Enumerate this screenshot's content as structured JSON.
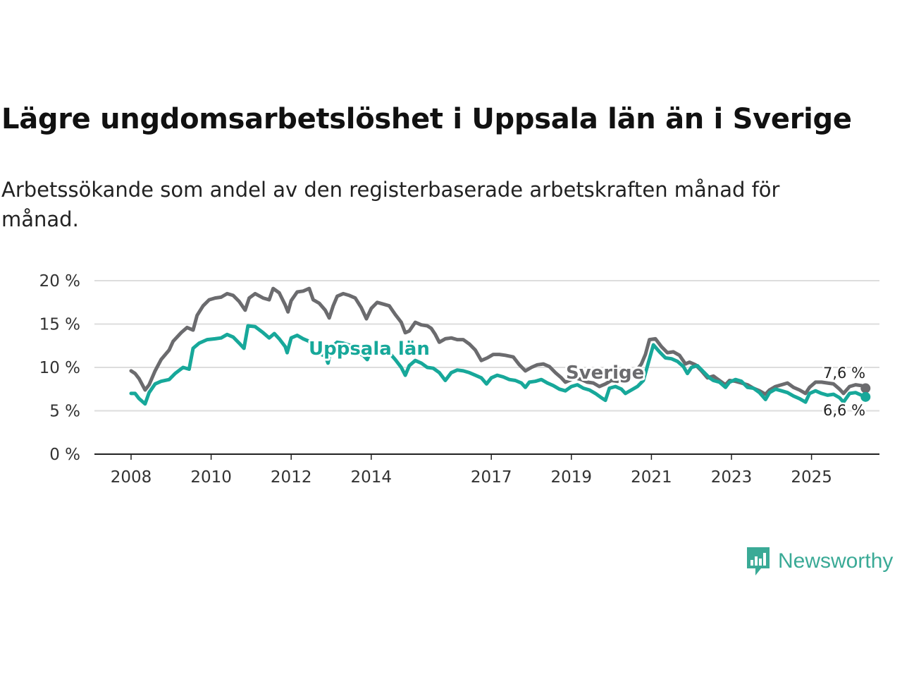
{
  "title": "Lägre ungdomsarbetslöshet i Uppsala län än i Sverige",
  "subtitle": "Arbetssökande som andel av den registerbaserade arbetskraften månad för månad.",
  "brand": {
    "name": "Newsworthy",
    "color": "#3aaa96",
    "icon": "newsworthy-chart-icon"
  },
  "colors": {
    "sverige": "#6b6b6e",
    "uppsala": "#17a89a",
    "grid": "#dddddd",
    "axis": "#222222"
  },
  "chart_data": {
    "type": "line",
    "title": "Lägre ungdomsarbetslöshet i Uppsala län än i Sverige",
    "xlabel": "",
    "ylabel": "",
    "xlim": [
      2007.9,
      2026.8
    ],
    "ylim": [
      0,
      20
    ],
    "y_ticks": [
      0,
      5,
      10,
      15,
      20
    ],
    "y_tick_labels": [
      "0 %",
      "5 %",
      "10 %",
      "15 %",
      "20 %"
    ],
    "x_ticks": [
      2008,
      2010,
      2012,
      2014,
      2017,
      2019,
      2021,
      2023,
      2025
    ],
    "x_tick_labels": [
      "2008",
      "2010",
      "2012",
      "2014",
      "2017",
      "2019",
      "2021",
      "2023",
      "2025"
    ],
    "grid": true,
    "series": [
      {
        "name": "Sverige",
        "label": "Sverige",
        "end_label": "7,6 %",
        "points": [
          [
            2008.0,
            9.6
          ],
          [
            2008.1,
            9.3
          ],
          [
            2008.2,
            8.7
          ],
          [
            2008.35,
            7.4
          ],
          [
            2008.45,
            8.0
          ],
          [
            2008.6,
            9.6
          ],
          [
            2008.75,
            10.9
          ],
          [
            2008.95,
            12.0
          ],
          [
            2009.05,
            13.0
          ],
          [
            2009.25,
            14.0
          ],
          [
            2009.4,
            14.6
          ],
          [
            2009.55,
            14.3
          ],
          [
            2009.65,
            16.0
          ],
          [
            2009.8,
            17.1
          ],
          [
            2009.95,
            17.8
          ],
          [
            2010.1,
            18.0
          ],
          [
            2010.25,
            18.1
          ],
          [
            2010.4,
            18.5
          ],
          [
            2010.55,
            18.3
          ],
          [
            2010.7,
            17.6
          ],
          [
            2010.85,
            16.6
          ],
          [
            2010.95,
            18.0
          ],
          [
            2011.1,
            18.5
          ],
          [
            2011.3,
            18.0
          ],
          [
            2011.45,
            17.8
          ],
          [
            2011.55,
            19.1
          ],
          [
            2011.7,
            18.6
          ],
          [
            2011.85,
            17.2
          ],
          [
            2011.92,
            16.4
          ],
          [
            2012.0,
            17.7
          ],
          [
            2012.15,
            18.7
          ],
          [
            2012.3,
            18.8
          ],
          [
            2012.45,
            19.1
          ],
          [
            2012.55,
            17.8
          ],
          [
            2012.7,
            17.4
          ],
          [
            2012.85,
            16.6
          ],
          [
            2012.95,
            15.7
          ],
          [
            2013.05,
            17.1
          ],
          [
            2013.15,
            18.2
          ],
          [
            2013.3,
            18.5
          ],
          [
            2013.45,
            18.3
          ],
          [
            2013.6,
            18.0
          ],
          [
            2013.75,
            16.9
          ],
          [
            2013.88,
            15.6
          ],
          [
            2014.0,
            16.8
          ],
          [
            2014.15,
            17.5
          ],
          [
            2014.3,
            17.3
          ],
          [
            2014.45,
            17.1
          ],
          [
            2014.6,
            16.1
          ],
          [
            2014.75,
            15.2
          ],
          [
            2014.85,
            14.0
          ],
          [
            2014.95,
            14.2
          ],
          [
            2015.1,
            15.2
          ],
          [
            2015.25,
            14.9
          ],
          [
            2015.4,
            14.8
          ],
          [
            2015.5,
            14.5
          ],
          [
            2015.6,
            13.8
          ],
          [
            2015.7,
            12.9
          ],
          [
            2015.85,
            13.3
          ],
          [
            2016.0,
            13.4
          ],
          [
            2016.15,
            13.2
          ],
          [
            2016.3,
            13.2
          ],
          [
            2016.45,
            12.7
          ],
          [
            2016.6,
            12.0
          ],
          [
            2016.75,
            10.8
          ],
          [
            2016.9,
            11.1
          ],
          [
            2017.05,
            11.5
          ],
          [
            2017.2,
            11.5
          ],
          [
            2017.35,
            11.4
          ],
          [
            2017.55,
            11.2
          ],
          [
            2017.7,
            10.3
          ],
          [
            2017.85,
            9.6
          ],
          [
            2018.0,
            10.0
          ],
          [
            2018.15,
            10.3
          ],
          [
            2018.3,
            10.4
          ],
          [
            2018.45,
            10.1
          ],
          [
            2018.6,
            9.4
          ],
          [
            2018.75,
            8.8
          ],
          [
            2018.85,
            8.3
          ],
          [
            2019.0,
            8.6
          ],
          [
            2019.1,
            8.8
          ],
          [
            2019.25,
            8.6
          ],
          [
            2019.4,
            8.3
          ],
          [
            2019.55,
            8.2
          ],
          [
            2019.7,
            7.8
          ],
          [
            2019.85,
            8.1
          ],
          [
            2020.0,
            8.5
          ],
          [
            2020.15,
            8.4
          ],
          [
            2020.3,
            8.6
          ],
          [
            2020.45,
            8.7
          ],
          [
            2020.6,
            9.5
          ],
          [
            2020.75,
            10.4
          ],
          [
            2020.85,
            11.5
          ],
          [
            2020.95,
            13.2
          ],
          [
            2021.1,
            13.3
          ],
          [
            2021.25,
            12.4
          ],
          [
            2021.4,
            11.7
          ],
          [
            2021.55,
            11.8
          ],
          [
            2021.7,
            11.4
          ],
          [
            2021.85,
            10.4
          ],
          [
            2021.95,
            10.6
          ],
          [
            2022.1,
            10.3
          ],
          [
            2022.25,
            9.6
          ],
          [
            2022.4,
            8.8
          ],
          [
            2022.55,
            9.0
          ],
          [
            2022.7,
            8.5
          ],
          [
            2022.85,
            8.0
          ],
          [
            2022.95,
            8.5
          ],
          [
            2023.1,
            8.4
          ],
          [
            2023.25,
            8.2
          ],
          [
            2023.4,
            8.0
          ],
          [
            2023.55,
            7.6
          ],
          [
            2023.7,
            7.3
          ],
          [
            2023.85,
            6.9
          ],
          [
            2023.95,
            7.4
          ],
          [
            2024.1,
            7.8
          ],
          [
            2024.25,
            8.0
          ],
          [
            2024.4,
            8.2
          ],
          [
            2024.55,
            7.7
          ],
          [
            2024.7,
            7.4
          ],
          [
            2024.85,
            7.0
          ],
          [
            2024.95,
            7.7
          ],
          [
            2025.1,
            8.3
          ],
          [
            2025.25,
            8.3
          ],
          [
            2025.4,
            8.2
          ],
          [
            2025.55,
            8.1
          ],
          [
            2025.7,
            7.5
          ],
          [
            2025.8,
            7.0
          ],
          [
            2025.95,
            7.8
          ],
          [
            2026.1,
            8.0
          ],
          [
            2026.25,
            7.9
          ],
          [
            2026.35,
            7.6
          ]
        ]
      },
      {
        "name": "Uppsala län",
        "label": "Uppsala län",
        "end_label": "6,6 %",
        "points": [
          [
            2008.0,
            7.0
          ],
          [
            2008.1,
            7.0
          ],
          [
            2008.2,
            6.4
          ],
          [
            2008.35,
            5.8
          ],
          [
            2008.45,
            7.1
          ],
          [
            2008.6,
            8.1
          ],
          [
            2008.75,
            8.4
          ],
          [
            2008.95,
            8.6
          ],
          [
            2009.1,
            9.3
          ],
          [
            2009.3,
            10.0
          ],
          [
            2009.45,
            9.8
          ],
          [
            2009.55,
            12.2
          ],
          [
            2009.7,
            12.8
          ],
          [
            2009.9,
            13.2
          ],
          [
            2010.1,
            13.3
          ],
          [
            2010.25,
            13.4
          ],
          [
            2010.4,
            13.8
          ],
          [
            2010.55,
            13.5
          ],
          [
            2010.7,
            12.8
          ],
          [
            2010.82,
            12.2
          ],
          [
            2010.92,
            14.8
          ],
          [
            2011.1,
            14.7
          ],
          [
            2011.3,
            14.0
          ],
          [
            2011.45,
            13.4
          ],
          [
            2011.58,
            13.9
          ],
          [
            2011.7,
            13.3
          ],
          [
            2011.85,
            12.4
          ],
          [
            2011.9,
            11.7
          ],
          [
            2012.0,
            13.4
          ],
          [
            2012.15,
            13.7
          ],
          [
            2012.3,
            13.3
          ],
          [
            2012.45,
            13.0
          ],
          [
            2012.55,
            11.9
          ],
          [
            2012.7,
            11.6
          ],
          [
            2012.85,
            11.3
          ],
          [
            2012.92,
            10.5
          ],
          [
            2013.0,
            12.3
          ],
          [
            2013.15,
            12.9
          ],
          [
            2013.3,
            12.8
          ],
          [
            2013.5,
            12.5
          ],
          [
            2013.65,
            11.7
          ],
          [
            2013.8,
            11.4
          ],
          [
            2013.9,
            10.9
          ],
          [
            2014.0,
            12.0
          ],
          [
            2014.15,
            12.5
          ],
          [
            2014.3,
            12.2
          ],
          [
            2014.45,
            11.7
          ],
          [
            2014.6,
            10.9
          ],
          [
            2014.75,
            10.0
          ],
          [
            2014.85,
            9.1
          ],
          [
            2014.95,
            10.2
          ],
          [
            2015.1,
            10.8
          ],
          [
            2015.25,
            10.5
          ],
          [
            2015.4,
            10.0
          ],
          [
            2015.55,
            9.9
          ],
          [
            2015.7,
            9.4
          ],
          [
            2015.85,
            8.5
          ],
          [
            2016.0,
            9.4
          ],
          [
            2016.15,
            9.7
          ],
          [
            2016.3,
            9.6
          ],
          [
            2016.45,
            9.4
          ],
          [
            2016.6,
            9.1
          ],
          [
            2016.75,
            8.8
          ],
          [
            2016.88,
            8.1
          ],
          [
            2017.0,
            8.8
          ],
          [
            2017.15,
            9.1
          ],
          [
            2017.3,
            8.9
          ],
          [
            2017.45,
            8.6
          ],
          [
            2017.6,
            8.5
          ],
          [
            2017.75,
            8.2
          ],
          [
            2017.85,
            7.7
          ],
          [
            2017.95,
            8.3
          ],
          [
            2018.1,
            8.4
          ],
          [
            2018.25,
            8.6
          ],
          [
            2018.4,
            8.2
          ],
          [
            2018.55,
            7.9
          ],
          [
            2018.7,
            7.5
          ],
          [
            2018.85,
            7.3
          ],
          [
            2019.0,
            7.8
          ],
          [
            2019.15,
            8.0
          ],
          [
            2019.3,
            7.6
          ],
          [
            2019.45,
            7.4
          ],
          [
            2019.6,
            7.0
          ],
          [
            2019.75,
            6.5
          ],
          [
            2019.85,
            6.2
          ],
          [
            2019.95,
            7.6
          ],
          [
            2020.1,
            7.8
          ],
          [
            2020.25,
            7.5
          ],
          [
            2020.35,
            7.0
          ],
          [
            2020.5,
            7.4
          ],
          [
            2020.65,
            7.8
          ],
          [
            2020.8,
            8.5
          ],
          [
            2020.92,
            10.5
          ],
          [
            2021.05,
            12.6
          ],
          [
            2021.2,
            11.8
          ],
          [
            2021.35,
            11.1
          ],
          [
            2021.5,
            11.0
          ],
          [
            2021.65,
            10.7
          ],
          [
            2021.8,
            10.1
          ],
          [
            2021.9,
            9.3
          ],
          [
            2022.0,
            10.0
          ],
          [
            2022.15,
            10.2
          ],
          [
            2022.3,
            9.5
          ],
          [
            2022.45,
            8.8
          ],
          [
            2022.55,
            8.5
          ],
          [
            2022.7,
            8.3
          ],
          [
            2022.85,
            7.7
          ],
          [
            2022.95,
            8.3
          ],
          [
            2023.1,
            8.6
          ],
          [
            2023.25,
            8.4
          ],
          [
            2023.4,
            7.7
          ],
          [
            2023.55,
            7.6
          ],
          [
            2023.7,
            7.1
          ],
          [
            2023.85,
            6.3
          ],
          [
            2023.95,
            7.1
          ],
          [
            2024.1,
            7.5
          ],
          [
            2024.25,
            7.3
          ],
          [
            2024.4,
            7.1
          ],
          [
            2024.55,
            6.7
          ],
          [
            2024.7,
            6.4
          ],
          [
            2024.85,
            6.0
          ],
          [
            2024.95,
            7.0
          ],
          [
            2025.1,
            7.3
          ],
          [
            2025.25,
            7.0
          ],
          [
            2025.4,
            6.8
          ],
          [
            2025.55,
            6.9
          ],
          [
            2025.7,
            6.5
          ],
          [
            2025.8,
            6.0
          ],
          [
            2025.95,
            7.0
          ],
          [
            2026.1,
            7.1
          ],
          [
            2026.25,
            6.8
          ],
          [
            2026.35,
            6.6
          ]
        ]
      }
    ]
  }
}
